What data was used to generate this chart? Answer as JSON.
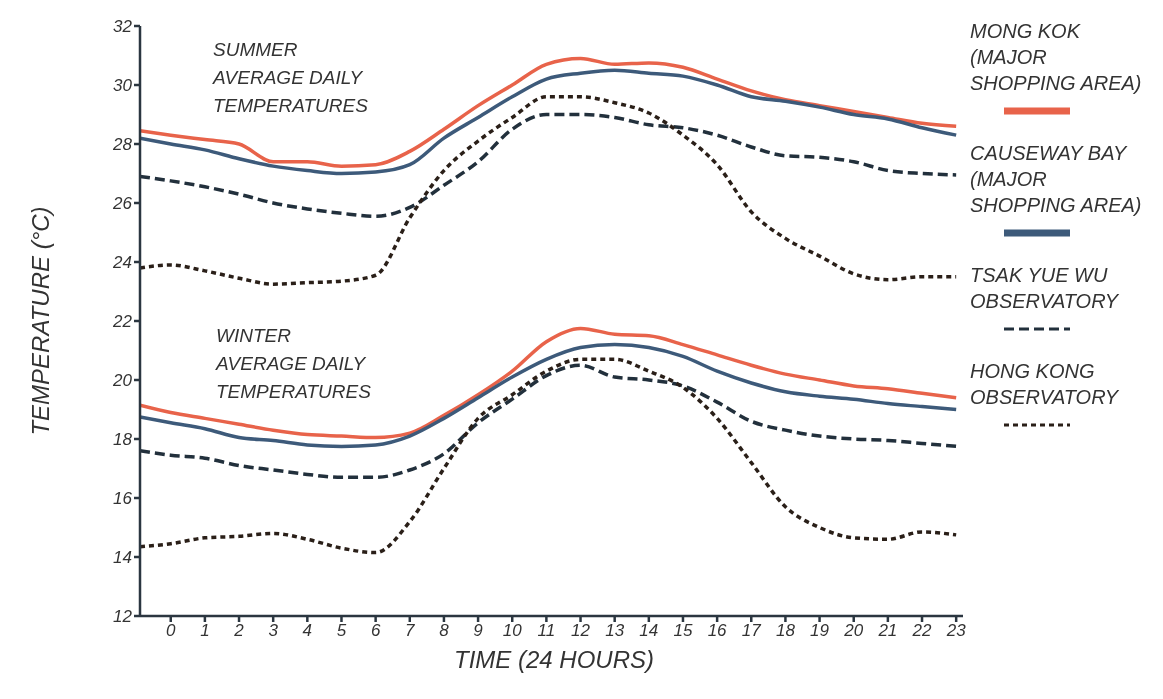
{
  "chart_data": {
    "type": "line",
    "xlabel": "TIME (24 HOURS)",
    "ylabel": "TEMPERATURE (°C)",
    "annotations": [
      "SUMMER AVERAGE DAILY TEMPERATURES",
      "WINTER AVERAGE DAILY TEMPERATURES"
    ],
    "x": [
      -0.9,
      0,
      1,
      2,
      3,
      4,
      5,
      6,
      7,
      8,
      9,
      10,
      11,
      12,
      13,
      14,
      15,
      16,
      17,
      18,
      19,
      20,
      21,
      22,
      23
    ],
    "xlim": [
      -0.9,
      23.2
    ],
    "xticks": [
      0,
      1,
      2,
      3,
      4,
      5,
      6,
      7,
      8,
      9,
      10,
      11,
      12,
      13,
      14,
      15,
      16,
      17,
      18,
      19,
      20,
      21,
      22,
      23
    ],
    "ylim": [
      12,
      32
    ],
    "yticks": [
      12,
      14,
      16,
      18,
      20,
      22,
      24,
      26,
      28,
      30,
      32
    ],
    "grid": false,
    "legend": "right",
    "marker": "none",
    "series": [
      {
        "name": "MONG KOK (MAJOR SHOPPING AREA)",
        "color": "#e8634a",
        "line_style": "solid",
        "values": [
          28.45,
          28.3,
          28.15,
          28.0,
          27.4,
          27.4,
          27.25,
          27.3,
          27.75,
          28.5,
          29.3,
          30.0,
          30.7,
          30.9,
          30.7,
          30.75,
          30.6,
          30.2,
          29.8,
          29.5,
          29.3,
          29.1,
          28.9,
          28.7,
          28.6
        ]
      },
      {
        "name": "CAUSEWAY BAY (MAJOR SHOPPING AREA)",
        "color": "#3d5a7a",
        "line_style": "solid",
        "values": [
          28.2,
          28.0,
          27.8,
          27.5,
          27.25,
          27.1,
          27.0,
          27.05,
          27.3,
          28.2,
          28.9,
          29.6,
          30.2,
          30.4,
          30.5,
          30.4,
          30.3,
          30.0,
          29.6,
          29.45,
          29.25,
          29.0,
          28.85,
          28.55,
          28.3
        ]
      },
      {
        "name": "TSAK YUE WU OBSERVATORY",
        "color": "#22303c",
        "line_style": "dashed",
        "values": [
          26.9,
          26.75,
          26.55,
          26.3,
          26.0,
          25.8,
          25.65,
          25.55,
          25.85,
          26.6,
          27.4,
          28.5,
          29.0,
          29.0,
          28.9,
          28.65,
          28.55,
          28.3,
          27.9,
          27.6,
          27.55,
          27.4,
          27.1,
          27.0,
          26.95
        ]
      },
      {
        "name": "HONG KONG OBSERVATORY",
        "color": "#2a1f18",
        "line_style": "dotted",
        "values": [
          23.8,
          23.9,
          23.7,
          23.45,
          23.25,
          23.3,
          23.35,
          23.55,
          25.5,
          27.1,
          28.1,
          28.9,
          29.6,
          29.6,
          29.4,
          29.05,
          28.3,
          27.3,
          25.7,
          24.8,
          24.2,
          23.6,
          23.4,
          23.5,
          23.5
        ]
      },
      {
        "color": "#e8634a",
        "line_style": "solid",
        "values": [
          19.15,
          18.9,
          18.7,
          18.5,
          18.3,
          18.15,
          18.1,
          18.05,
          18.2,
          18.8,
          19.5,
          20.3,
          21.3,
          21.75,
          21.55,
          21.5,
          21.2,
          20.85,
          20.5,
          20.2,
          20.0,
          19.8,
          19.7,
          19.55,
          19.4
        ]
      },
      {
        "color": "#3d5a7a",
        "line_style": "solid",
        "values": [
          18.75,
          18.55,
          18.35,
          18.05,
          17.95,
          17.8,
          17.75,
          17.8,
          18.1,
          18.7,
          19.4,
          20.1,
          20.7,
          21.1,
          21.2,
          21.1,
          20.8,
          20.3,
          19.9,
          19.6,
          19.45,
          19.35,
          19.2,
          19.1,
          19.0
        ]
      },
      {
        "color": "#22303c",
        "line_style": "dashed",
        "values": [
          17.6,
          17.45,
          17.35,
          17.1,
          16.95,
          16.8,
          16.7,
          16.7,
          16.95,
          17.5,
          18.55,
          19.35,
          20.15,
          20.5,
          20.1,
          20.0,
          19.8,
          19.25,
          18.6,
          18.3,
          18.1,
          18.0,
          17.95,
          17.85,
          17.75
        ]
      },
      {
        "color": "#2a1f18",
        "line_style": "dotted",
        "values": [
          14.35,
          14.45,
          14.65,
          14.7,
          14.8,
          14.6,
          14.3,
          14.15,
          15.2,
          17.0,
          18.7,
          19.5,
          20.3,
          20.7,
          20.7,
          20.3,
          19.75,
          18.7,
          17.2,
          15.7,
          15.0,
          14.65,
          14.6,
          14.85,
          14.75
        ]
      }
    ]
  }
}
